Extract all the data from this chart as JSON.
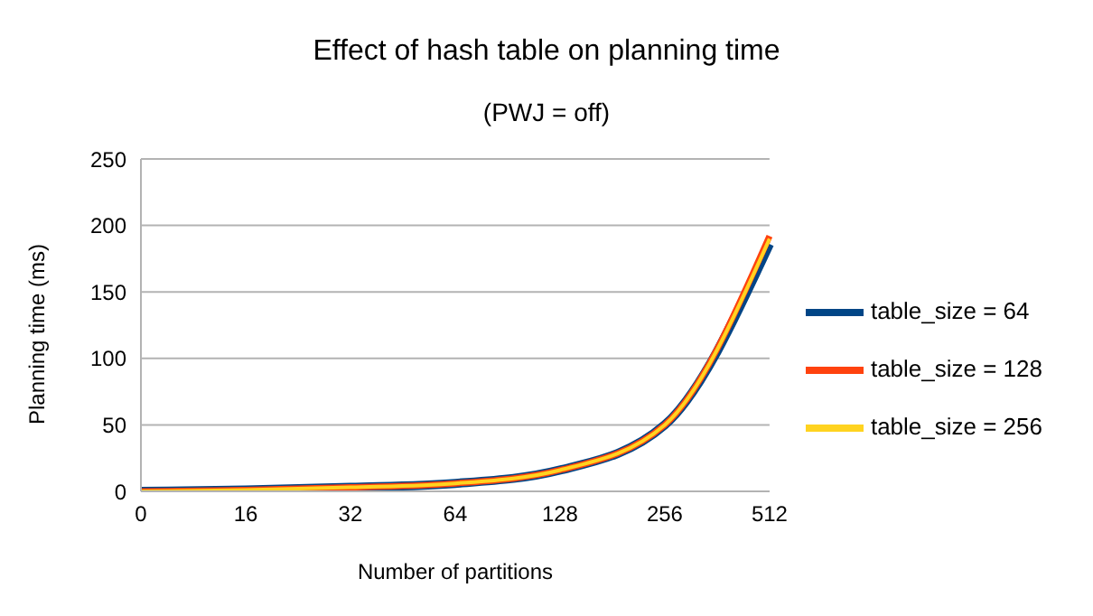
{
  "chart_data": {
    "type": "line",
    "title": "Effect of hash table on planning time",
    "subtitle": "(PWJ = off)",
    "xlabel": "Number of partitions",
    "ylabel": "Planning time (ms)",
    "categories": [
      "0",
      "16",
      "32",
      "64",
      "128",
      "256",
      "512"
    ],
    "series": [
      {
        "name": "table_size = 64",
        "color": "#004586",
        "values": [
          0,
          1,
          3,
          6,
          16,
          50,
          186
        ]
      },
      {
        "name": "table_size = 128",
        "color": "#ff420e",
        "values": [
          0,
          1,
          3,
          6,
          16,
          50,
          192
        ]
      },
      {
        "name": "table_size = 256",
        "color": "#ffd320",
        "values": [
          0,
          1,
          3,
          6,
          16,
          50,
          190
        ]
      }
    ],
    "ylim": [
      0,
      250
    ],
    "yticks": [
      0,
      50,
      100,
      150,
      200,
      250
    ],
    "grid": "y",
    "legend": "right",
    "marker": "none",
    "line_style": "solid"
  }
}
